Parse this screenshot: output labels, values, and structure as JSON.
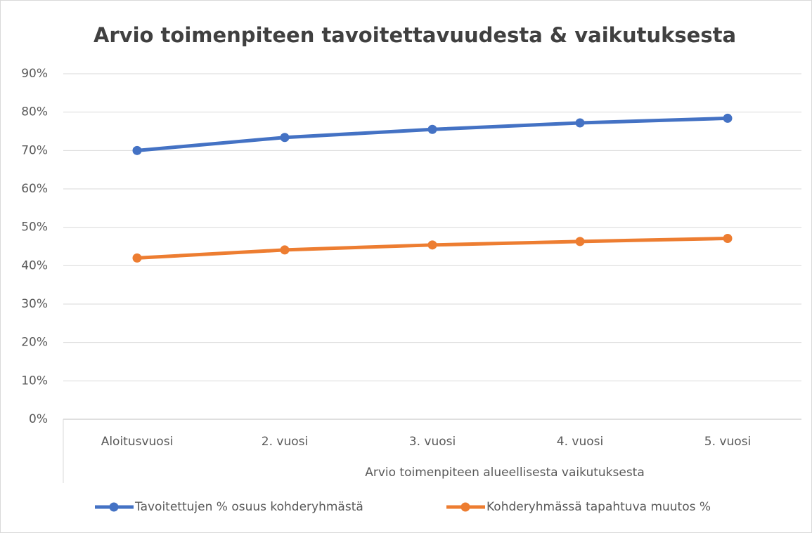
{
  "chart_data": {
    "type": "line",
    "title": "Arvio toimenpiteen tavoitettavuudesta &  vaikutuksesta",
    "x_label": "Arvio toimenpiteen alueellisesta vaikutuksesta",
    "categories": [
      "Aloitusvuosi",
      "2. vuosi",
      "3. vuosi",
      "4. vuosi",
      "5. vuosi"
    ],
    "series": [
      {
        "name": "Tavoitettujen % osuus kohderyhmästä",
        "color": "#4472c4",
        "values": [
          70,
          73.4,
          75.5,
          77.2,
          78.4
        ]
      },
      {
        "name": "Kohderyhmässä tapahtuva muutos %",
        "color": "#ed7d31",
        "values": [
          42,
          44.1,
          45.4,
          46.3,
          47.1
        ]
      }
    ],
    "ylim": [
      0,
      90
    ],
    "yticks": [
      {
        "value": 0,
        "label": "0%"
      },
      {
        "value": 10,
        "label": "10%"
      },
      {
        "value": 20,
        "label": "20%"
      },
      {
        "value": 30,
        "label": "30%"
      },
      {
        "value": 40,
        "label": "40%"
      },
      {
        "value": 50,
        "label": "50%"
      },
      {
        "value": 60,
        "label": "60%"
      },
      {
        "value": 70,
        "label": "70%"
      },
      {
        "value": 80,
        "label": "80%"
      },
      {
        "value": 90,
        "label": "90%"
      }
    ],
    "grid": true,
    "legend": "bottom"
  }
}
